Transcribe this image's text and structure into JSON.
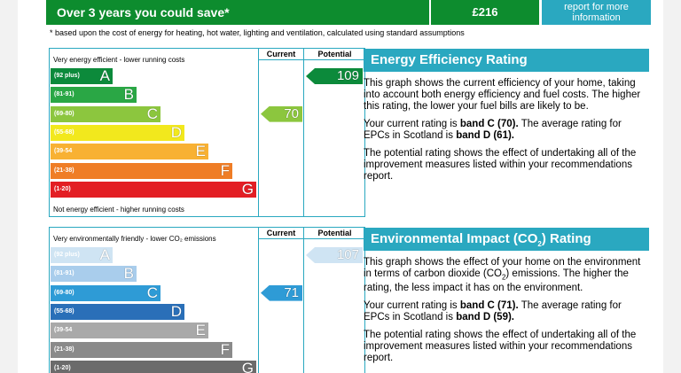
{
  "savings": {
    "label": "Over 3 years you could save*",
    "value": "£216",
    "report_link_line1": "report for more",
    "report_link_line2": "information"
  },
  "footnote": "* based upon the cost of energy for heating, hot water, lighting and ventilation, calculated using standard assumptions",
  "energy_chart": {
    "top_label": "Very energy efficient - lower running costs",
    "bottom_label": "Not energy efficient - higher running costs",
    "current_header": "Current",
    "potential_header": "Potential",
    "bands": [
      {
        "range": "(92 plus)",
        "letter": "A",
        "color": "#0c8a3b"
      },
      {
        "range": "(81-91)",
        "letter": "B",
        "color": "#2aa745"
      },
      {
        "range": "(69-80)",
        "letter": "C",
        "color": "#8cc63e"
      },
      {
        "range": "(55-68)",
        "letter": "D",
        "color": "#f2e81d"
      },
      {
        "range": "(39-54",
        "letter": "E",
        "color": "#f8b133"
      },
      {
        "range": "(21-38)",
        "letter": "F",
        "color": "#ef7d26"
      },
      {
        "range": "(1-20)",
        "letter": "G",
        "color": "#e31e24"
      }
    ],
    "current": {
      "value": "70",
      "band": "C",
      "color": "#8cc63e"
    },
    "potential": {
      "value": "109",
      "band": "A",
      "color": "#0c8a3b"
    }
  },
  "env_chart": {
    "top_label": "Very environmentally friendly - lower CO₂ emissions",
    "current_header": "Current",
    "potential_header": "Potential",
    "bands": [
      {
        "range": "(92 plus)",
        "letter": "A",
        "color": "#cfe4f3"
      },
      {
        "range": "(81-91)",
        "letter": "B",
        "color": "#a9cdec"
      },
      {
        "range": "(69-80)",
        "letter": "C",
        "color": "#2e9bd6"
      },
      {
        "range": "(55-68)",
        "letter": "D",
        "color": "#2a6fb8"
      },
      {
        "range": "(39-54",
        "letter": "E",
        "color": "#a9a9a9"
      },
      {
        "range": "(21-38)",
        "letter": "F",
        "color": "#8a8a8a"
      },
      {
        "range": "(1-20)",
        "letter": "G",
        "color": "#6b6b6b"
      }
    ],
    "current": {
      "value": "71",
      "band": "C",
      "color": "#2e9bd6"
    },
    "potential": {
      "value": "107",
      "band": "A",
      "color": "#cfe4f3"
    }
  },
  "energy_panel": {
    "title": "Energy Efficiency Rating",
    "p1": "This graph shows the current efficiency of your home, taking into account both energy efficiency and fuel costs. The higher this rating, the lower your fuel bills are likely to be.",
    "p2_pre": "Your current rating is ",
    "p2_bold1": "band C (70).",
    "p2_mid": " The average rating for EPCs in Scotland is ",
    "p2_bold2": "band D (61).",
    "p3": "The potential rating shows the effect of undertaking all of the improvement measures listed within your recommendations report."
  },
  "env_panel": {
    "title_pre": "Environmental Impact (CO",
    "title_sub": "2",
    "title_post": ") Rating",
    "p1_pre": "This graph shows the effect of your home on the environment in terms of carbon dioxide (CO",
    "p1_sub": "2",
    "p1_post": ") emissions. The higher the rating, the less impact it has on the environment.",
    "p2_pre": "Your current rating is ",
    "p2_bold1": "band C (71).",
    "p2_mid": " The average rating for EPCs in Scotland is ",
    "p2_bold2": "band D (59).",
    "p3": "The potential rating shows the effect of undertaking all of the improvement measures listed within your recommendations report."
  }
}
